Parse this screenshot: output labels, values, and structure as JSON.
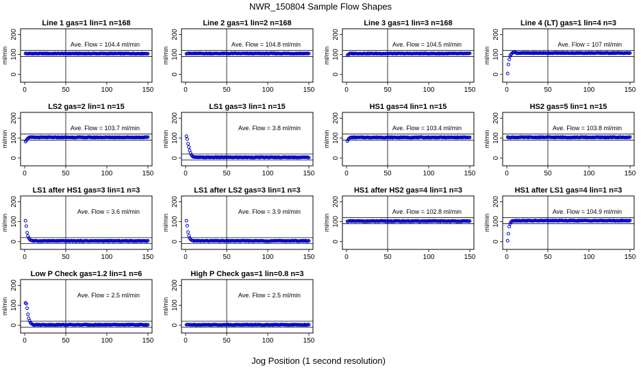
{
  "figure": {
    "title": "NWR_150804  Sample Flow Shapes",
    "xlabel": "Jog Position (1 second resolution)"
  },
  "chart_data": [
    {
      "type": "scatter",
      "title": "Line 1 gas=1 lin=1 n=168",
      "ylabel": "ml/min",
      "annotation": "Ave. Flow =  104.4  ml/min",
      "xlim": [
        0,
        150
      ],
      "ylim": [
        0,
        200
      ],
      "xticks": [
        0,
        50,
        100,
        150
      ],
      "yticks": [
        0,
        100,
        200
      ],
      "vline_x": 50,
      "hlines_y": [
        90,
        120
      ],
      "marker_color": "#0000cc",
      "series": [
        {
          "shape": "flat",
          "x_range": [
            1,
            150
          ],
          "y_level": 104.4
        }
      ]
    },
    {
      "type": "scatter",
      "title": "Line 2 gas=1 lin=2 n=168",
      "ylabel": "ml/min",
      "annotation": "Ave. Flow =  104.8  ml/min",
      "xlim": [
        0,
        150
      ],
      "ylim": [
        0,
        200
      ],
      "xticks": [
        0,
        50,
        100,
        150
      ],
      "yticks": [
        0,
        100,
        200
      ],
      "vline_x": 50,
      "hlines_y": [
        90,
        120
      ],
      "marker_color": "#0000cc",
      "series": [
        {
          "shape": "flat",
          "x_range": [
            1,
            150
          ],
          "y_level": 104.8
        }
      ]
    },
    {
      "type": "scatter",
      "title": "Line 3 gas=1 lin=3 n=168",
      "ylabel": "ml/min",
      "annotation": "Ave. Flow =  104.5  ml/min",
      "xlim": [
        0,
        150
      ],
      "ylim": [
        0,
        200
      ],
      "xticks": [
        0,
        50,
        100,
        150
      ],
      "yticks": [
        0,
        100,
        200
      ],
      "vline_x": 50,
      "hlines_y": [
        90,
        120
      ],
      "marker_color": "#0000cc",
      "series": [
        {
          "shape": "rise",
          "x_range": [
            1,
            150
          ],
          "y_level": 104.5,
          "start_values": [
            96,
            100,
            102
          ]
        }
      ]
    },
    {
      "type": "scatter",
      "title": "Line 4 (LT) gas=1 lin=4 n=3",
      "ylabel": "ml/min",
      "annotation": "Ave. Flow =  107  ml/min",
      "xlim": [
        0,
        150
      ],
      "ylim": [
        0,
        200
      ],
      "xticks": [
        0,
        50,
        100,
        150
      ],
      "yticks": [
        0,
        100,
        200
      ],
      "vline_x": 50,
      "hlines_y": [
        90,
        120
      ],
      "marker_color": "#0000cc",
      "series": [
        {
          "shape": "rise",
          "x_range": [
            1,
            150
          ],
          "y_level": 107,
          "start_values": [
            5,
            50,
            75,
            92,
            100,
            104,
            108,
            110,
            112,
            113
          ]
        }
      ]
    },
    {
      "type": "scatter",
      "title": "LS2 gas=2 lin=1 n=15",
      "ylabel": "ml/min",
      "annotation": "Ave. Flow =  103.7  ml/min",
      "xlim": [
        0,
        150
      ],
      "ylim": [
        0,
        200
      ],
      "xticks": [
        0,
        50,
        100,
        150
      ],
      "yticks": [
        0,
        100,
        200
      ],
      "vline_x": 50,
      "hlines_y": [
        90,
        120
      ],
      "marker_color": "#0000cc",
      "series": [
        {
          "shape": "rise",
          "x_range": [
            1,
            150
          ],
          "y_level": 103.7,
          "start_values": [
            82,
            88,
            94,
            99,
            102
          ]
        }
      ]
    },
    {
      "type": "scatter",
      "title": "LS1 gas=3 lin=1 n=15",
      "ylabel": "ml/min",
      "annotation": "Ave. Flow =  3.8  ml/min",
      "xlim": [
        0,
        150
      ],
      "ylim": [
        0,
        200
      ],
      "xticks": [
        0,
        50,
        100,
        150
      ],
      "yticks": [
        0,
        100,
        200
      ],
      "vline_x": 50,
      "hlines_y": [
        -10,
        20
      ],
      "marker_color": "#0000cc",
      "series": [
        {
          "shape": "decay",
          "x_range": [
            1,
            150
          ],
          "y_level": 3.8,
          "start_values": [
            110,
            95,
            72,
            55,
            38,
            25,
            16,
            10,
            7,
            5
          ]
        }
      ]
    },
    {
      "type": "scatter",
      "title": "HS1 gas=4 lin=1 n=15",
      "ylabel": "ml/min",
      "annotation": "Ave. Flow =  103.4  ml/min",
      "xlim": [
        0,
        150
      ],
      "ylim": [
        0,
        200
      ],
      "xticks": [
        0,
        50,
        100,
        150
      ],
      "yticks": [
        0,
        100,
        200
      ],
      "vline_x": 50,
      "hlines_y": [
        90,
        120
      ],
      "marker_color": "#0000cc",
      "series": [
        {
          "shape": "rise",
          "x_range": [
            1,
            150
          ],
          "y_level": 103.4,
          "start_values": [
            85,
            92,
            98,
            101
          ]
        }
      ]
    },
    {
      "type": "scatter",
      "title": "HS2 gas=5 lin=1 n=15",
      "ylabel": "ml/min",
      "annotation": "Ave. Flow =  103.8  ml/min",
      "xlim": [
        0,
        150
      ],
      "ylim": [
        0,
        200
      ],
      "xticks": [
        0,
        50,
        100,
        150
      ],
      "yticks": [
        0,
        100,
        200
      ],
      "vline_x": 50,
      "hlines_y": [
        90,
        120
      ],
      "marker_color": "#0000cc",
      "series": [
        {
          "shape": "flat",
          "x_range": [
            1,
            150
          ],
          "y_level": 103.8
        }
      ]
    },
    {
      "type": "scatter",
      "title": "LS1 after HS1 gas=3 lin=1 n=3",
      "ylabel": "ml/min",
      "annotation": "Ave. Flow =  3.6  ml/min",
      "xlim": [
        0,
        150
      ],
      "ylim": [
        0,
        200
      ],
      "xticks": [
        0,
        50,
        100,
        150
      ],
      "yticks": [
        0,
        100,
        200
      ],
      "vline_x": 50,
      "hlines_y": [
        -10,
        20
      ],
      "marker_color": "#0000cc",
      "series": [
        {
          "shape": "decay",
          "x_range": [
            1,
            150
          ],
          "y_level": 3.6,
          "start_values": [
            105,
            78,
            45,
            28,
            18,
            12,
            8,
            6,
            5
          ]
        }
      ]
    },
    {
      "type": "scatter",
      "title": "LS1 after LS2 gas=3 lin=1 n=3",
      "ylabel": "ml/min",
      "annotation": "Ave. Flow =  3.9  ml/min",
      "xlim": [
        0,
        150
      ],
      "ylim": [
        0,
        200
      ],
      "xticks": [
        0,
        50,
        100,
        150
      ],
      "yticks": [
        0,
        100,
        200
      ],
      "vline_x": 50,
      "hlines_y": [
        -10,
        20
      ],
      "marker_color": "#0000cc",
      "series": [
        {
          "shape": "decay",
          "x_range": [
            1,
            150
          ],
          "y_level": 3.9,
          "start_values": [
            105,
            80,
            48,
            30,
            18,
            12,
            8,
            6,
            5
          ]
        }
      ]
    },
    {
      "type": "scatter",
      "title": "HS1 after HS2 gas=4 lin=1 n=3",
      "ylabel": "ml/min",
      "annotation": "Ave. Flow =  102.8  ml/min",
      "xlim": [
        0,
        150
      ],
      "ylim": [
        0,
        200
      ],
      "xticks": [
        0,
        50,
        100,
        150
      ],
      "yticks": [
        0,
        100,
        200
      ],
      "vline_x": 50,
      "hlines_y": [
        90,
        120
      ],
      "marker_color": "#0000cc",
      "series": [
        {
          "shape": "flat",
          "x_range": [
            1,
            150
          ],
          "y_level": 102.8
        }
      ]
    },
    {
      "type": "scatter",
      "title": "HS1 after LS1 gas=4 lin=1 n=3",
      "ylabel": "ml/min",
      "annotation": "Ave. Flow =  104.9  ml/min",
      "xlim": [
        0,
        150
      ],
      "ylim": [
        0,
        200
      ],
      "xticks": [
        0,
        50,
        100,
        150
      ],
      "yticks": [
        0,
        100,
        200
      ],
      "vline_x": 50,
      "hlines_y": [
        90,
        120
      ],
      "marker_color": "#0000cc",
      "series": [
        {
          "shape": "rise",
          "x_range": [
            1,
            150
          ],
          "y_level": 104.9,
          "start_values": [
            5,
            40,
            75,
            90,
            98,
            102,
            104
          ]
        }
      ]
    },
    {
      "type": "scatter",
      "title": "Low P Check gas=1.2 lin=1 n=6",
      "ylabel": "ml/min",
      "annotation": "Ave. Flow =  2.5  ml/min",
      "xlim": [
        0,
        150
      ],
      "ylim": [
        0,
        200
      ],
      "xticks": [
        0,
        50,
        100,
        150
      ],
      "yticks": [
        0,
        100,
        200
      ],
      "vline_x": 50,
      "hlines_y": [
        -10,
        20
      ],
      "marker_color": "#0000cc",
      "series": [
        {
          "shape": "decay",
          "x_range": [
            1,
            150
          ],
          "y_level": 2.5,
          "start_values": [
            112,
            108,
            85,
            55,
            35,
            22,
            14,
            9,
            6,
            4
          ]
        }
      ]
    },
    {
      "type": "scatter",
      "title": "High P Check gas=1 lin=0.8 n=3",
      "ylabel": "ml/min",
      "annotation": "Ave. Flow =  2.5  ml/min",
      "xlim": [
        0,
        150
      ],
      "ylim": [
        0,
        200
      ],
      "xticks": [
        0,
        50,
        100,
        150
      ],
      "yticks": [
        0,
        100,
        200
      ],
      "vline_x": 50,
      "hlines_y": [
        -10,
        20
      ],
      "marker_color": "#0000cc",
      "series": [
        {
          "shape": "flat",
          "x_range": [
            1,
            150
          ],
          "y_level": 2.5
        }
      ]
    }
  ]
}
